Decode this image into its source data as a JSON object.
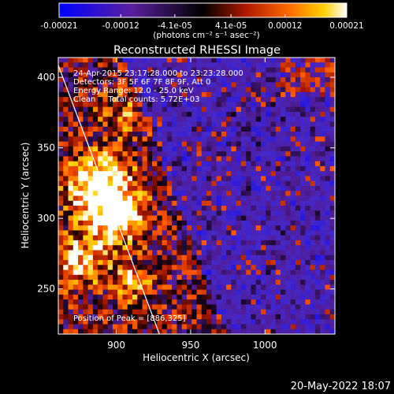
{
  "colorbar": {
    "tick_labels": [
      "-0.00021",
      "-0.00012",
      "-4.1e-05",
      "4.1e-05",
      "0.00012",
      "0.00021"
    ],
    "tick_values": [
      -0.00021,
      -0.00012,
      -4.1e-05,
      4.1e-05,
      0.00012,
      0.00021
    ],
    "range": [
      -0.00021,
      0.00021
    ],
    "unit_label": "(photons cm⁻² s⁻¹ asec⁻²)"
  },
  "chart_data": {
    "type": "heatmap",
    "title": "Reconstructed RHESSI Image",
    "xlabel": "Heliocentric X (arcsec)",
    "ylabel": "Heliocentric Y (arcsec)",
    "xlim": [
      861,
      1047
    ],
    "ylim": [
      218,
      414
    ],
    "xticks": [
      900,
      950,
      1000
    ],
    "yticks": [
      250,
      300,
      350,
      400
    ],
    "annotations": [
      "24-Apr-2015 23:17:28.000 to 23:23:28.000",
      "Detectors: 3F 5F 6F 7F 8F 9F, Att 0",
      "Energy Range: 12.0 - 25.0 keV",
      "Clean     Total counts: 5.72E+03",
      "Position of Peak = [886,325]"
    ],
    "peak_position": [
      886,
      325
    ],
    "limb_line": [
      [
        859,
        414
      ],
      [
        929,
        218
      ]
    ]
  },
  "footer": {
    "timestamp": "20-May-2022 18:07"
  }
}
